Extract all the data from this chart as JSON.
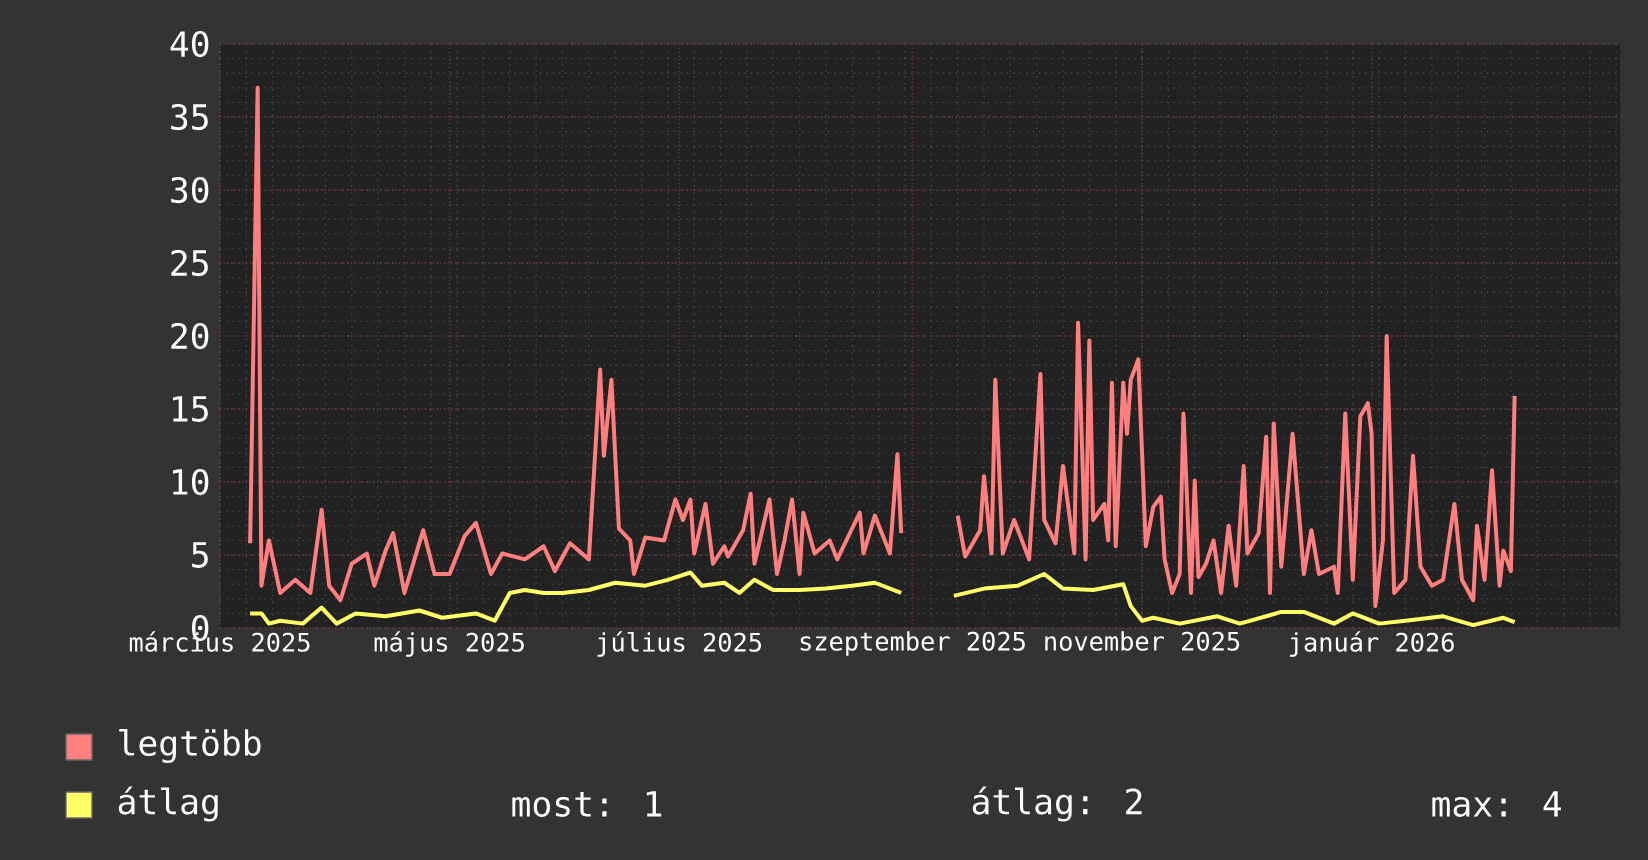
{
  "chart_data": {
    "type": "line",
    "xlim": [
      "2025-03-01",
      "2026-03-08"
    ],
    "xticks": [
      {
        "value": "2025-03-01",
        "label": "március 2025"
      },
      {
        "value": "2025-05-01",
        "label": "május 2025"
      },
      {
        "value": "2025-07-01",
        "label": "július 2025"
      },
      {
        "value": "2025-09-01",
        "label": "szeptember 2025"
      },
      {
        "value": "2025-11-01",
        "label": "november 2025"
      },
      {
        "value": "2026-01-01",
        "label": "január 2026"
      }
    ],
    "ylim": [
      0,
      40
    ],
    "yticks": [
      0,
      5,
      10,
      15,
      20,
      25,
      30,
      35,
      40
    ],
    "grid": true,
    "legend": "bottom",
    "annotations": [
      "most: 1",
      "átlag: 2",
      "max: 4"
    ],
    "series": [
      {
        "name": "legtöbb",
        "color": "#ff7f7f",
        "x": [
          "2025-03-09",
          "2025-03-11",
          "2025-03-12",
          "2025-03-14",
          "2025-03-17",
          "2025-03-21",
          "2025-03-25",
          "2025-03-28",
          "2025-03-30",
          "2025-04-02",
          "2025-04-05",
          "2025-04-09",
          "2025-04-11",
          "2025-04-14",
          "2025-04-16",
          "2025-04-19",
          "2025-04-24",
          "2025-04-27",
          "2025-05-01",
          "2025-05-05",
          "2025-05-08",
          "2025-05-12",
          "2025-05-15",
          "2025-05-21",
          "2025-05-26",
          "2025-05-29",
          "2025-06-02",
          "2025-06-07",
          "2025-06-10",
          "2025-06-11",
          "2025-06-13",
          "2025-06-15",
          "2025-06-18",
          "2025-06-19",
          "2025-06-22",
          "2025-06-27",
          "2025-06-30",
          "2025-07-02",
          "2025-07-04",
          "2025-07-05",
          "2025-07-08",
          "2025-07-10",
          "2025-07-13",
          "2025-07-14",
          "2025-07-18",
          "2025-07-20",
          "2025-07-21",
          "2025-07-25",
          "2025-07-27",
          "2025-07-29",
          "2025-07-31",
          "2025-08-02",
          "2025-08-03",
          "2025-08-06",
          "2025-08-10",
          "2025-08-12",
          "2025-08-18",
          "2025-08-19",
          "2025-08-22",
          "2025-08-26",
          "2025-08-28",
          "2025-08-29",
          "2025-09-05",
          "2025-09-13",
          "2025-09-15",
          "2025-09-19",
          "2025-09-20",
          "2025-09-22",
          "2025-09-23",
          "2025-09-25",
          "2025-09-28",
          "2025-10-02",
          "2025-10-05",
          "2025-10-06",
          "2025-10-09",
          "2025-10-11",
          "2025-10-14",
          "2025-10-15",
          "2025-10-17",
          "2025-10-18",
          "2025-10-19",
          "2025-10-22",
          "2025-10-23",
          "2025-10-24",
          "2025-10-25",
          "2025-10-27",
          "2025-10-28",
          "2025-10-29",
          "2025-10-31",
          "2025-11-02",
          "2025-11-04",
          "2025-11-06",
          "2025-11-07",
          "2025-11-09",
          "2025-11-11",
          "2025-11-12",
          "2025-11-14",
          "2025-11-15",
          "2025-11-16",
          "2025-11-18",
          "2025-11-20",
          "2025-11-22",
          "2025-11-24",
          "2025-11-26",
          "2025-11-28",
          "2025-11-29",
          "2025-12-02",
          "2025-12-04",
          "2025-12-05",
          "2025-12-06",
          "2025-12-08",
          "2025-12-11",
          "2025-12-14",
          "2025-12-16",
          "2025-12-18",
          "2025-12-22",
          "2025-12-23",
          "2025-12-25",
          "2025-12-27",
          "2025-12-29",
          "2025-12-31",
          "2026-01-01",
          "2026-01-02",
          "2026-01-04",
          "2026-01-05",
          "2026-01-07",
          "2026-01-10",
          "2026-01-12",
          "2026-01-14",
          "2026-01-17",
          "2026-01-20",
          "2026-01-23",
          "2026-01-25",
          "2026-01-28",
          "2026-01-29",
          "2026-01-31",
          "2026-02-02",
          "2026-02-04",
          "2026-02-05",
          "2026-02-07",
          "2026-02-08"
        ],
        "values": [
          5.8,
          37,
          2.9,
          6,
          2.4,
          3.3,
          2.4,
          8.1,
          2.9,
          1.9,
          4.4,
          5.1,
          2.9,
          5.3,
          6.5,
          2.4,
          6.7,
          3.7,
          3.7,
          6.3,
          7.2,
          3.7,
          5.1,
          4.7,
          5.6,
          3.9,
          5.8,
          4.7,
          17.7,
          11.8,
          17.0,
          6.8,
          6.0,
          3.7,
          6.2,
          6.0,
          8.8,
          7.4,
          8.8,
          5.1,
          8.5,
          4.4,
          5.6,
          4.9,
          6.7,
          9.2,
          4.4,
          8.8,
          3.7,
          6.0,
          8.8,
          3.7,
          7.9,
          5.1,
          6.0,
          4.7,
          7.9,
          5.1,
          7.7,
          5.1,
          11.9,
          6.5,
          null,
          7.7,
          4.9,
          6.7,
          10.4,
          5.1,
          17.0,
          5.1,
          7.4,
          4.7,
          17.4,
          7.4,
          5.8,
          11.1,
          5.1,
          20.9,
          4.7,
          19.7,
          7.4,
          8.5,
          6.0,
          16.8,
          5.6,
          16.8,
          13.3,
          17.0,
          18.4,
          5.6,
          8.3,
          9.0,
          4.7,
          2.4,
          3.7,
          14.7,
          2.4,
          10.1,
          3.5,
          4.4,
          6.0,
          2.4,
          7.0,
          2.9,
          11.1,
          5.1,
          6.5,
          13.1,
          2.4,
          14.0,
          4.2,
          13.3,
          3.7,
          6.7,
          3.7,
          4.2,
          2.4,
          14.7,
          3.3,
          14.5,
          15.4,
          13.3,
          1.5,
          6.0,
          20.0,
          2.4,
          3.3,
          11.8,
          4.2,
          2.9,
          3.3,
          8.5,
          3.3,
          1.9,
          7.0,
          3.3,
          10.8,
          2.9,
          5.3,
          3.9,
          15.9
        ]
      },
      {
        "name": "átlag",
        "color": "#ffff66",
        "x": [
          "2025-03-09",
          "2025-03-12",
          "2025-03-14",
          "2025-03-17",
          "2025-03-23",
          "2025-03-28",
          "2025-04-01",
          "2025-04-06",
          "2025-04-14",
          "2025-04-23",
          "2025-04-29",
          "2025-05-08",
          "2025-05-13",
          "2025-05-17",
          "2025-05-21",
          "2025-05-26",
          "2025-05-31",
          "2025-06-07",
          "2025-06-14",
          "2025-06-22",
          "2025-06-28",
          "2025-07-04",
          "2025-07-07",
          "2025-07-13",
          "2025-07-17",
          "2025-07-21",
          "2025-07-26",
          "2025-08-02",
          "2025-08-09",
          "2025-08-16",
          "2025-08-22",
          "2025-08-29",
          "2025-09-05",
          "2025-09-12",
          "2025-09-20",
          "2025-09-29",
          "2025-10-06",
          "2025-10-11",
          "2025-10-19",
          "2025-10-27",
          "2025-10-29",
          "2025-11-01",
          "2025-11-04",
          "2025-11-11",
          "2025-11-21",
          "2025-11-27",
          "2025-12-08",
          "2025-12-14",
          "2025-12-22",
          "2025-12-27",
          "2026-01-03",
          "2026-01-10",
          "2026-01-20",
          "2026-01-28",
          "2026-02-05",
          "2026-02-08"
        ],
        "values": [
          1.0,
          1.0,
          0.3,
          0.5,
          0.3,
          1.4,
          0.3,
          1.0,
          0.8,
          1.2,
          0.7,
          1.0,
          0.5,
          2.4,
          2.6,
          2.4,
          2.4,
          2.6,
          3.1,
          2.9,
          3.3,
          3.8,
          2.9,
          3.1,
          2.4,
          3.3,
          2.6,
          2.6,
          2.7,
          2.9,
          3.1,
          2.4,
          null,
          2.2,
          2.7,
          2.9,
          3.7,
          2.7,
          2.6,
          3.0,
          1.5,
          0.5,
          0.7,
          0.3,
          0.8,
          0.3,
          1.1,
          1.1,
          0.3,
          1.0,
          0.3,
          0.5,
          0.8,
          0.2,
          0.7,
          0.4
        ]
      }
    ]
  }
}
